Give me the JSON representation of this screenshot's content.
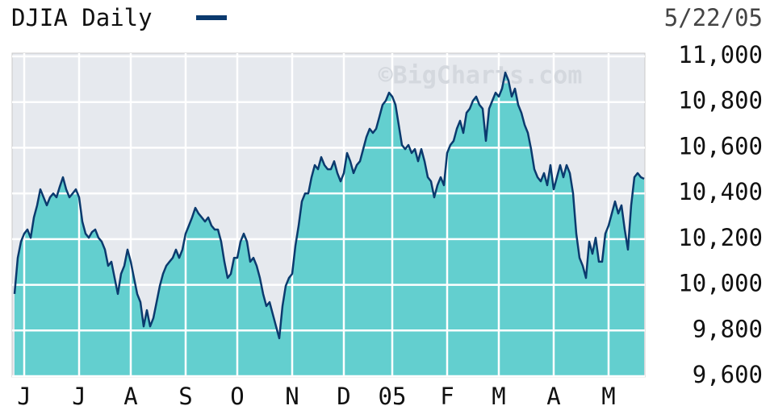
{
  "chart_data": {
    "type": "area",
    "title": "DJIA Daily",
    "date": "5/22/05",
    "watermark": "©BigCharts.com",
    "series": [
      {
        "name": "DJIA Daily",
        "color": "#0b3a6e",
        "fill": "#63cfcf",
        "values": [
          9960,
          10118,
          10189,
          10224,
          10242,
          10206,
          10295,
          10348,
          10418,
          10383,
          10348,
          10383,
          10400,
          10383,
          10429,
          10471,
          10418,
          10383,
          10400,
          10418,
          10383,
          10277,
          10224,
          10206,
          10231,
          10242,
          10206,
          10189,
          10154,
          10083,
          10101,
          10030,
          9960,
          10048,
          10083,
          10154,
          10101,
          10030,
          9960,
          9924,
          9818,
          9889,
          9818,
          9854,
          9924,
          9995,
          10048,
          10083,
          10101,
          10118,
          10154,
          10118,
          10154,
          10224,
          10259,
          10295,
          10337,
          10312,
          10295,
          10277,
          10295,
          10259,
          10242,
          10242,
          10189,
          10101,
          10030,
          10048,
          10118,
          10118,
          10189,
          10224,
          10189,
          10101,
          10118,
          10083,
          10030,
          9960,
          9907,
          9924,
          9871,
          9818,
          9766,
          9907,
          9995,
          10030,
          10048,
          10171,
          10259,
          10365,
          10400,
          10400,
          10471,
          10524,
          10506,
          10559,
          10524,
          10506,
          10506,
          10541,
          10489,
          10453,
          10489,
          10577,
          10541,
          10489,
          10524,
          10541,
          10594,
          10647,
          10683,
          10665,
          10683,
          10735,
          10788,
          10806,
          10841,
          10824,
          10788,
          10700,
          10612,
          10594,
          10612,
          10577,
          10594,
          10541,
          10594,
          10541,
          10471,
          10453,
          10383,
          10436,
          10471,
          10436,
          10577,
          10612,
          10630,
          10683,
          10718,
          10665,
          10753,
          10771,
          10806,
          10824,
          10788,
          10771,
          10630,
          10771,
          10806,
          10841,
          10824,
          10859,
          10929,
          10894,
          10824,
          10859,
          10788,
          10753,
          10700,
          10665,
          10594,
          10506,
          10471,
          10453,
          10489,
          10436,
          10524,
          10418,
          10471,
          10524,
          10471,
          10524,
          10489,
          10400,
          10224,
          10118,
          10083,
          10030,
          10189,
          10136,
          10206,
          10101,
          10101,
          10224,
          10259,
          10312,
          10365,
          10312,
          10348,
          10242,
          10154,
          10348,
          10471,
          10489,
          10471,
          10464
        ]
      }
    ],
    "xlim": [
      0,
      195
    ],
    "xticks": [
      {
        "value": 3,
        "label": "J"
      },
      {
        "value": 20,
        "label": "J"
      },
      {
        "value": 36,
        "label": "A"
      },
      {
        "value": 53,
        "label": "S"
      },
      {
        "value": 69,
        "label": "O"
      },
      {
        "value": 86,
        "label": "N"
      },
      {
        "value": 102,
        "label": "D"
      },
      {
        "value": 117,
        "label": "05"
      },
      {
        "value": 134,
        "label": "F"
      },
      {
        "value": 150,
        "label": "M"
      },
      {
        "value": 167,
        "label": "A"
      },
      {
        "value": 184,
        "label": "M"
      }
    ],
    "ylim": [
      9600,
      11000
    ],
    "yticks": [
      {
        "value": 9600,
        "label": "9,600"
      },
      {
        "value": 9800,
        "label": "9,800"
      },
      {
        "value": 10000,
        "label": "10,000"
      },
      {
        "value": 10200,
        "label": "10,200"
      },
      {
        "value": 10400,
        "label": "10,400"
      },
      {
        "value": 10600,
        "label": "10,600"
      },
      {
        "value": 10800,
        "label": "10,800"
      },
      {
        "value": 11000,
        "label": "11,000"
      }
    ],
    "grid": true
  }
}
